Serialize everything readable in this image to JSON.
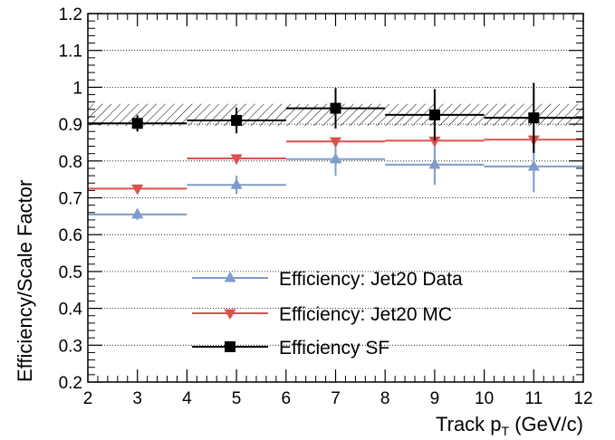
{
  "chart_data": {
    "type": "scatter",
    "title": "",
    "xlabel": {
      "main": "Track p",
      "sub": "T",
      "unit": " (GeV/c)"
    },
    "ylabel": "Efficiency/Scale Factor",
    "xlim": [
      2,
      12
    ],
    "ylim": [
      0.2,
      1.2
    ],
    "xticks": [
      "2",
      "3",
      "4",
      "5",
      "6",
      "7",
      "8",
      "9",
      "10",
      "11",
      "12"
    ],
    "yticks": [
      "0.2",
      "0.3",
      "0.4",
      "0.5",
      "0.6",
      "0.7",
      "0.8",
      "0.9",
      "1",
      "1.1",
      "1.2"
    ],
    "grid": "horizontal dotted",
    "legend_position": "bottom-center",
    "sf_systematic_band": [
      0.895,
      0.955
    ],
    "series": [
      {
        "name": "Efficiency: Jet20 Data",
        "color": "#7f9bcb",
        "marker": "triangle-up",
        "points": [
          {
            "x": 3,
            "xlow": 2,
            "xhigh": 4,
            "y": 0.655,
            "yerr": 0.015
          },
          {
            "x": 5,
            "xlow": 4,
            "xhigh": 6,
            "y": 0.735,
            "yerr": 0.025
          },
          {
            "x": 7,
            "xlow": 6,
            "xhigh": 8,
            "y": 0.805,
            "yerr": 0.045
          },
          {
            "x": 9,
            "xlow": 8,
            "xhigh": 10,
            "y": 0.79,
            "yerr": 0.055
          },
          {
            "x": 11,
            "xlow": 10,
            "xhigh": 12,
            "y": 0.785,
            "yerr": 0.07
          }
        ]
      },
      {
        "name": "Efficiency: Jet20 MC",
        "color": "#d9534f",
        "marker": "triangle-down",
        "points": [
          {
            "x": 3,
            "xlow": 2,
            "xhigh": 4,
            "y": 0.725,
            "yerr": 0.003
          },
          {
            "x": 5,
            "xlow": 4,
            "xhigh": 6,
            "y": 0.807,
            "yerr": 0.003
          },
          {
            "x": 7,
            "xlow": 6,
            "xhigh": 8,
            "y": 0.853,
            "yerr": 0.004
          },
          {
            "x": 9,
            "xlow": 8,
            "xhigh": 10,
            "y": 0.855,
            "yerr": 0.005
          },
          {
            "x": 11,
            "xlow": 10,
            "xhigh": 12,
            "y": 0.858,
            "yerr": 0.006
          }
        ]
      },
      {
        "name": "Efficiency SF",
        "color": "#000000",
        "marker": "square",
        "points": [
          {
            "x": 3,
            "xlow": 2,
            "xhigh": 4,
            "y": 0.902,
            "yerr": 0.022
          },
          {
            "x": 5,
            "xlow": 4,
            "xhigh": 6,
            "y": 0.91,
            "yerr": 0.035
          },
          {
            "x": 7,
            "xlow": 6,
            "xhigh": 8,
            "y": 0.943,
            "yerr": 0.055
          },
          {
            "x": 9,
            "xlow": 8,
            "xhigh": 10,
            "y": 0.925,
            "yerr": 0.07
          },
          {
            "x": 11,
            "xlow": 10,
            "xhigh": 12,
            "y": 0.917,
            "yerr": 0.095
          }
        ]
      }
    ]
  }
}
